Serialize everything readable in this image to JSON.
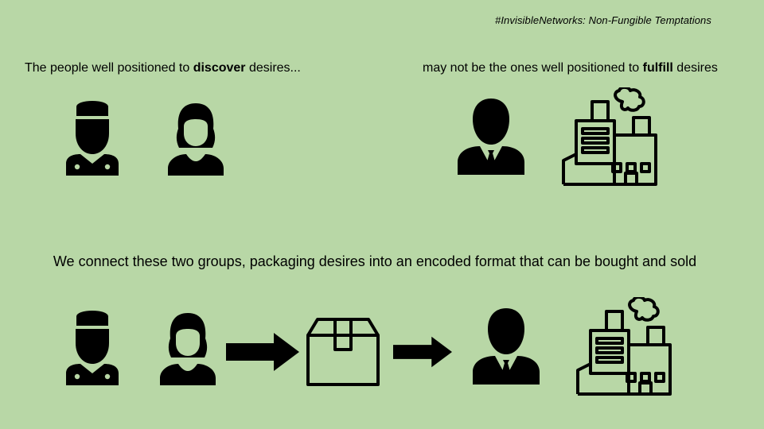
{
  "slide": {
    "hashtag": "#InvisibleNetworks: Non-Fungible Temptations",
    "left_caption": {
      "before": "The people well positioned to ",
      "bold": "discover",
      "after": " desires..."
    },
    "right_caption": {
      "before": "may not be the ones well positioned to ",
      "bold": "fulfill",
      "after": " desires"
    },
    "headline": "We connect these two groups, packaging desires into an encoded format that can be bought and sold"
  },
  "icons": {
    "top_row": [
      "chef-icon",
      "worker-woman-icon",
      "businessman-icon",
      "factory-icon"
    ],
    "bottom_row": [
      "chef-icon",
      "worker-woman-icon",
      "arrow-right-icon",
      "package-box-icon",
      "arrow-right-icon",
      "businessman-icon",
      "factory-icon"
    ]
  },
  "colors": {
    "background": "#b8d7a6",
    "ink": "#000000"
  }
}
